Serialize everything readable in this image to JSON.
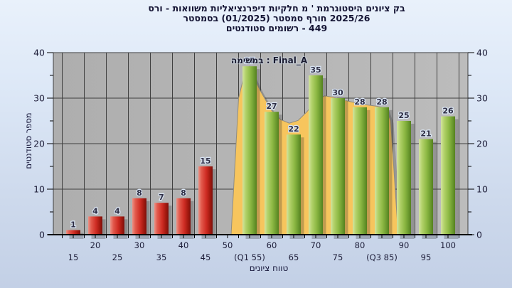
{
  "title": {
    "lines": [
      {
        "tokens": [
          "ורס",
          "-",
          "משוואות",
          "דיפרנציאליות",
          "חלקיות",
          "מ",
          "'",
          "היסטוגרמת",
          "ציונים",
          "בק"
        ]
      },
      {
        "tokens": [
          "בסמסטר",
          "(01/2025)",
          "סמסטר",
          "חורף",
          "2025/26"
        ]
      },
      {
        "tokens": [
          "סטודנטים",
          "רשומים",
          "-",
          "449"
        ]
      }
    ]
  },
  "legend": {
    "tokens": [
      "במשימה",
      ":",
      "Final_A"
    ]
  },
  "axes": {
    "x_title": "טווח ציונים",
    "y_title": "מספר סטודנטים",
    "y_ticks": [
      0,
      10,
      20,
      30,
      40
    ],
    "y_minor_ticks": [
      5,
      15,
      25,
      35
    ]
  },
  "chart_data": {
    "type": "bar",
    "title": "היסטוגרמת ציונים בקורס - משוואות דיפרנציאליות חלקיות מ'",
    "subtitle": "בסמסטר (01/2025) סמסטר חורף 2025/26",
    "registered_students_label": "סטודנטים רשומים - 449",
    "registered_students": 449,
    "xlabel": "טווח ציונים",
    "ylabel": "מספר סטודנטים",
    "ylim": [
      0,
      40
    ],
    "grid": true,
    "legend_series_name": "Final_A",
    "categories": [
      {
        "grade": 15,
        "label": "15",
        "row": 2,
        "value": 1,
        "color": "red"
      },
      {
        "grade": 20,
        "label": "20",
        "row": 1,
        "value": 4,
        "color": "red"
      },
      {
        "grade": 25,
        "label": "25",
        "row": 2,
        "value": 4,
        "color": "red"
      },
      {
        "grade": 30,
        "label": "30",
        "row": 1,
        "value": 8,
        "color": "red"
      },
      {
        "grade": 35,
        "label": "35",
        "row": 2,
        "value": 7,
        "color": "red"
      },
      {
        "grade": 40,
        "label": "40",
        "row": 1,
        "value": 8,
        "color": "red"
      },
      {
        "grade": 45,
        "label": "45",
        "row": 2,
        "value": 15,
        "color": "red"
      },
      {
        "grade": 50,
        "label": "50",
        "row": 1,
        "value": 0,
        "color": "none"
      },
      {
        "grade": 55,
        "label": "(Q1 55)",
        "row": 2,
        "value": 37,
        "color": "green"
      },
      {
        "grade": 60,
        "label": "60",
        "row": 1,
        "value": 27,
        "color": "green"
      },
      {
        "grade": 65,
        "label": "65",
        "row": 2,
        "value": 22,
        "color": "green"
      },
      {
        "grade": 70,
        "label": "70",
        "row": 1,
        "value": 35,
        "color": "green"
      },
      {
        "grade": 75,
        "label": "75",
        "row": 2,
        "value": 30,
        "color": "green"
      },
      {
        "grade": 80,
        "label": "80",
        "row": 1,
        "value": 28,
        "color": "green"
      },
      {
        "grade": 85,
        "label": "(Q3 85)",
        "row": 2,
        "value": 28,
        "color": "green"
      },
      {
        "grade": 90,
        "label": "90",
        "row": 1,
        "value": 25,
        "color": "green"
      },
      {
        "grade": 95,
        "label": "95",
        "row": 2,
        "value": 21,
        "color": "green"
      },
      {
        "grade": 100,
        "label": "100",
        "row": 1,
        "value": 26,
        "color": "green"
      }
    ],
    "area_series": {
      "name": "Final_A",
      "points": [
        [
          50.8,
          0
        ],
        [
          52.5,
          30
        ],
        [
          54,
          36
        ],
        [
          55,
          37
        ],
        [
          56,
          34.5
        ],
        [
          57.5,
          31.5
        ],
        [
          60,
          27.3
        ],
        [
          62,
          25.3
        ],
        [
          64,
          24.5
        ],
        [
          66,
          25.1
        ],
        [
          68,
          27
        ],
        [
          70,
          29.4
        ],
        [
          72,
          30.5
        ],
        [
          74,
          30.2
        ],
        [
          75,
          29.9
        ],
        [
          78,
          29.2
        ],
        [
          81,
          28.6
        ],
        [
          84,
          28.2
        ],
        [
          86,
          27.7
        ],
        [
          87,
          25
        ],
        [
          88.7,
          0
        ]
      ]
    },
    "colors": {
      "red_bar": "#cf2d24",
      "green_bar": "#8db944",
      "area": "#f7c55d",
      "plot_bg": "#b3b3b3",
      "grid": "#3f3f3f",
      "text": "#1d1d38"
    }
  }
}
